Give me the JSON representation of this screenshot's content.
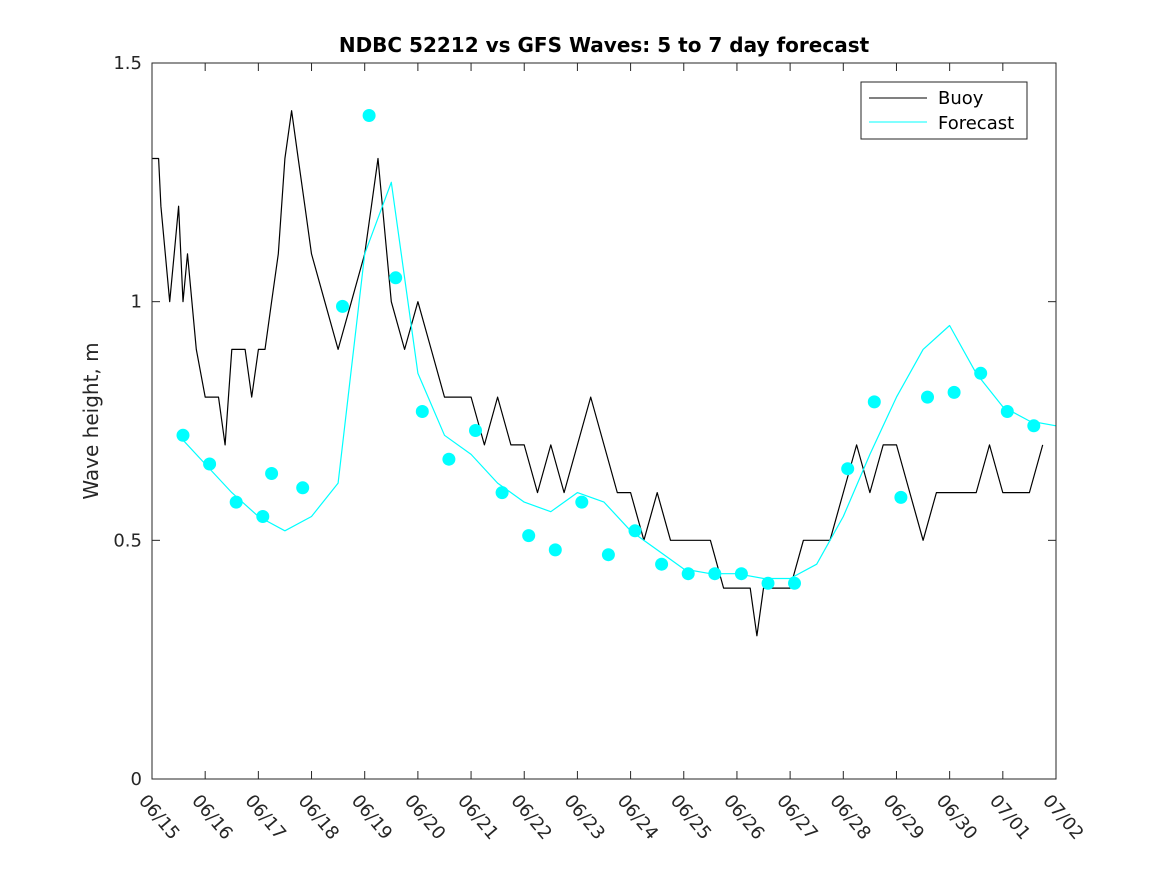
{
  "chart_data": {
    "type": "line",
    "title": "NDBC 52212 vs GFS Waves: 5 to 7 day forecast",
    "xlabel": "",
    "ylabel": "Wave height, m",
    "xlim": [
      "06/15",
      "07/02"
    ],
    "ylim": [
      0,
      1.5
    ],
    "yticks": [
      0,
      0.5,
      1,
      1.5
    ],
    "ytick_labels": [
      "0",
      "0.5",
      "1",
      "1.5"
    ],
    "xtick_labels": [
      "06/15",
      "06/16",
      "06/17",
      "06/18",
      "06/19",
      "06/20",
      "06/21",
      "06/22",
      "06/23",
      "06/24",
      "06/25",
      "06/26",
      "06/27",
      "06/28",
      "06/29",
      "06/30",
      "07/01",
      "07/02"
    ],
    "grid": false,
    "legend": {
      "position": "top-right",
      "entries": [
        "Buoy",
        "Forecast"
      ]
    },
    "colors": {
      "buoy": "#000000",
      "forecast": "#00ffff",
      "axes": "#262626"
    },
    "series": [
      {
        "name": "Buoy",
        "x": [
          "06/15 00:00",
          "06/15 03:00",
          "06/15 04:00",
          "06/15 06:00",
          "06/15 08:00",
          "06/15 10:00",
          "06/15 12:00",
          "06/15 14:00",
          "06/15 16:00",
          "06/15 18:00",
          "06/15 20:00",
          "06/16 00:00",
          "06/16 03:00",
          "06/16 06:00",
          "06/16 09:00",
          "06/16 12:00",
          "06/16 18:00",
          "06/16 21:00",
          "06/17 00:00",
          "06/17 03:00",
          "06/17 06:00",
          "06/17 09:00",
          "06/17 12:00",
          "06/17 15:00",
          "06/17 18:00",
          "06/17 21:00",
          "06/18 00:00",
          "06/18 06:00",
          "06/18 12:00",
          "06/18 18:00",
          "06/19 00:00",
          "06/19 03:00",
          "06/19 06:00",
          "06/19 12:00",
          "06/19 18:00",
          "06/20 00:00",
          "06/20 06:00",
          "06/20 12:00",
          "06/20 18:00",
          "06/21 00:00",
          "06/21 06:00",
          "06/21 12:00",
          "06/21 18:00",
          "06/22 00:00",
          "06/22 06:00",
          "06/22 12:00",
          "06/22 18:00",
          "06/23 00:00",
          "06/23 06:00",
          "06/23 12:00",
          "06/23 18:00",
          "06/24 00:00",
          "06/24 06:00",
          "06/24 12:00",
          "06/24 18:00",
          "06/25 00:00",
          "06/25 06:00",
          "06/25 12:00",
          "06/25 18:00",
          "06/26 00:00",
          "06/26 06:00",
          "06/26 09:00",
          "06/26 12:00",
          "06/26 18:00",
          "06/27 00:00",
          "06/27 06:00",
          "06/27 12:00",
          "06/27 18:00",
          "06/28 00:00",
          "06/28 06:00",
          "06/28 12:00",
          "06/28 18:00",
          "06/29 00:00",
          "06/29 06:00",
          "06/29 12:00",
          "06/29 18:00",
          "06/30 00:00",
          "06/30 06:00",
          "06/30 12:00",
          "06/30 18:00",
          "07/01 00:00",
          "07/01 06:00",
          "07/01 12:00",
          "07/01 18:00"
        ],
        "y": [
          1.3,
          1.3,
          1.2,
          1.1,
          1.0,
          1.1,
          1.2,
          1.0,
          1.1,
          1.0,
          0.9,
          0.8,
          0.8,
          0.8,
          0.7,
          0.9,
          0.9,
          0.8,
          0.9,
          0.9,
          1.0,
          1.1,
          1.3,
          1.4,
          1.3,
          1.2,
          1.1,
          1.0,
          0.9,
          1.0,
          1.1,
          1.2,
          1.3,
          1.0,
          0.9,
          1.0,
          0.9,
          0.8,
          0.8,
          0.8,
          0.7,
          0.8,
          0.7,
          0.7,
          0.6,
          0.7,
          0.6,
          0.7,
          0.8,
          0.7,
          0.6,
          0.6,
          0.5,
          0.6,
          0.5,
          0.5,
          0.5,
          0.5,
          0.4,
          0.4,
          0.4,
          0.3,
          0.4,
          0.4,
          0.4,
          0.5,
          0.5,
          0.5,
          0.6,
          0.7,
          0.6,
          0.7,
          0.7,
          0.6,
          0.5,
          0.6,
          0.6,
          0.6,
          0.6,
          0.7,
          0.6,
          0.6,
          0.6,
          0.7
        ]
      },
      {
        "name": "Forecast",
        "x": [
          "06/15 12:00",
          "06/16 00:00",
          "06/16 12:00",
          "06/17 00:00",
          "06/17 12:00",
          "06/18 00:00",
          "06/18 12:00",
          "06/19 00:00",
          "06/19 12:00",
          "06/20 00:00",
          "06/20 12:00",
          "06/21 00:00",
          "06/21 12:00",
          "06/22 00:00",
          "06/22 12:00",
          "06/23 00:00",
          "06/23 12:00",
          "06/24 00:00",
          "06/24 12:00",
          "06/25 00:00",
          "06/25 12:00",
          "06/26 00:00",
          "06/26 12:00",
          "06/27 00:00",
          "06/27 12:00",
          "06/28 00:00",
          "06/28 12:00",
          "06/29 00:00",
          "06/29 12:00",
          "06/30 00:00",
          "06/30 12:00",
          "07/01 00:00",
          "07/01 12:00",
          "07/02 00:00"
        ],
        "y": [
          0.72,
          0.66,
          0.6,
          0.55,
          0.52,
          0.55,
          0.62,
          1.1,
          1.25,
          0.85,
          0.72,
          0.68,
          0.62,
          0.58,
          0.56,
          0.6,
          0.58,
          0.52,
          0.48,
          0.44,
          0.43,
          0.43,
          0.42,
          0.42,
          0.45,
          0.55,
          0.68,
          0.8,
          0.9,
          0.95,
          0.85,
          0.78,
          0.75,
          0.74
        ]
      }
    ],
    "markers": {
      "x": [
        "06/15 14:00",
        "06/16 02:00",
        "06/16 14:00",
        "06/17 02:00",
        "06/17 06:00",
        "06/17 20:00",
        "06/18 14:00",
        "06/19 02:00",
        "06/19 14:00",
        "06/20 02:00",
        "06/20 14:00",
        "06/21 02:00",
        "06/21 14:00",
        "06/22 02:00",
        "06/22 14:00",
        "06/23 02:00",
        "06/23 14:00",
        "06/24 02:00",
        "06/24 14:00",
        "06/25 02:00",
        "06/25 14:00",
        "06/26 02:00",
        "06/26 14:00",
        "06/27 02:00",
        "06/28 02:00",
        "06/28 14:00",
        "06/29 02:00",
        "06/29 14:00",
        "06/30 02:00",
        "06/30 14:00",
        "07/01 02:00",
        "07/01 14:00"
      ],
      "y": [
        0.72,
        0.66,
        0.58,
        0.55,
        0.64,
        0.61,
        0.99,
        1.39,
        1.05,
        0.77,
        0.67,
        0.73,
        0.6,
        0.51,
        0.48,
        0.58,
        0.47,
        0.52,
        0.45,
        0.43,
        0.43,
        0.43,
        0.41,
        0.41,
        0.65,
        0.79,
        0.59,
        0.8,
        0.81,
        0.85,
        0.77,
        0.74
      ]
    }
  }
}
